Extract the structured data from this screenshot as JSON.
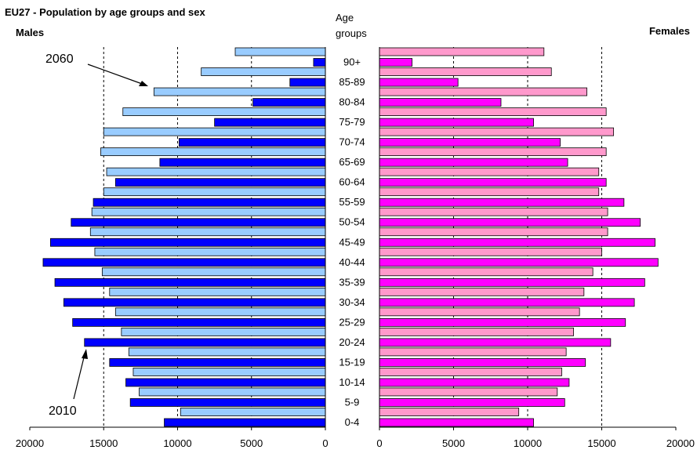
{
  "chart_data": {
    "type": "bar",
    "orientation": "horizontal",
    "layout": "population-pyramid",
    "title": "EU27 - Population by age groups and sex",
    "left_label": "Males",
    "right_label": "Females",
    "category_header": "Age groups",
    "x_ticks_left": [
      "20000",
      "15000",
      "10000",
      "5000",
      "0"
    ],
    "x_ticks_right": [
      "0",
      "5000",
      "10000",
      "15000",
      "20000"
    ],
    "xlim": [
      0,
      20000
    ],
    "grid": "dashed vertical lines at 5000, 10000 and 15000",
    "annotations": [
      {
        "text": "2060",
        "series": "2060"
      },
      {
        "text": "2010",
        "series": "2010"
      }
    ],
    "categories": [
      "90+",
      "85-89",
      "80-84",
      "75-79",
      "70-74",
      "65-69",
      "60-64",
      "55-59",
      "50-54",
      "45-49",
      "40-44",
      "35-39",
      "30-34",
      "25-29",
      "20-24",
      "15-19",
      "10-14",
      "5-9",
      "0-4"
    ],
    "series": [
      {
        "sex": "male",
        "year": "2060",
        "color": "#99ccff",
        "values": [
          6100,
          8400,
          11600,
          13700,
          15000,
          15200,
          14800,
          15000,
          15800,
          15900,
          15600,
          15100,
          14600,
          14200,
          13800,
          13300,
          13000,
          12600,
          9800
        ]
      },
      {
        "sex": "male",
        "year": "2010",
        "color": "#0000ff",
        "values": [
          800,
          2400,
          4900,
          7500,
          9900,
          11200,
          14200,
          15700,
          17200,
          18600,
          19100,
          18300,
          17700,
          17100,
          16300,
          14600,
          13500,
          13200,
          10900
        ]
      },
      {
        "sex": "female",
        "year": "2060",
        "color": "#ff99cc",
        "values": [
          11100,
          11600,
          14000,
          15300,
          15800,
          15300,
          14800,
          14800,
          15400,
          15400,
          15000,
          14400,
          13800,
          13500,
          13100,
          12600,
          12300,
          12000,
          9400
        ]
      },
      {
        "sex": "female",
        "year": "2010",
        "color": "#ff00ff",
        "values": [
          2200,
          5300,
          8200,
          10400,
          12200,
          12700,
          15300,
          16500,
          17600,
          18600,
          18800,
          17900,
          17200,
          16600,
          15600,
          13900,
          12800,
          12500,
          10400
        ]
      }
    ]
  }
}
